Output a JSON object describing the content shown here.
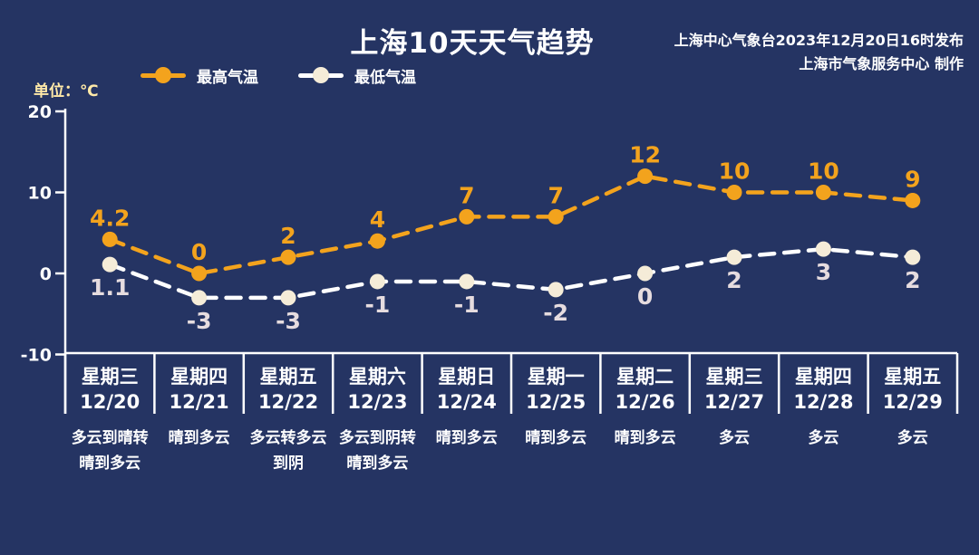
{
  "header": {
    "title": "上海10天天气趋势",
    "publisher_line1": "上海中心气象台2023年12月20日16时发布",
    "publisher_line2": "上海市气象服务中心 制作"
  },
  "legend": {
    "high_label": "最高气温",
    "low_label": "最低气温"
  },
  "unit_label": "单位：℃",
  "colors": {
    "background": "#253463",
    "high_accent": "#f3a31d",
    "low_marker": "#f5ecd8",
    "low_line": "#ffffff",
    "low_value_text": "#e6dcdf",
    "axis": "#ffffff",
    "unit_text": "#ffe9a8"
  },
  "chart_data": {
    "type": "line",
    "title": "上海10天天气趋势",
    "ylabel": "单位：℃",
    "yticks": [
      20,
      10,
      0,
      -10
    ],
    "ylim": [
      -10,
      20
    ],
    "grid": false,
    "legend_position": "top-left",
    "series": [
      {
        "name": "最高气温",
        "values": [
          4.2,
          0,
          2,
          4,
          7,
          7,
          12,
          10,
          10,
          9
        ],
        "line_color": "#f3a31d",
        "marker_color": "#f3a31d",
        "value_color": "#f3a31d",
        "label_position": "above"
      },
      {
        "name": "最低气温",
        "values": [
          1.1,
          -3,
          -3,
          -1,
          -1,
          -2,
          0,
          2,
          3,
          2
        ],
        "line_color": "#ffffff",
        "marker_color": "#f5ecd8",
        "value_color": "#e6dcdf",
        "label_position": "below"
      }
    ],
    "categories": [
      {
        "weekday": "星期三",
        "date": "12/20",
        "weather": [
          "多云到晴转",
          "晴到多云"
        ]
      },
      {
        "weekday": "星期四",
        "date": "12/21",
        "weather": [
          "晴到多云"
        ]
      },
      {
        "weekday": "星期五",
        "date": "12/22",
        "weather": [
          "多云转多云",
          "到阴"
        ]
      },
      {
        "weekday": "星期六",
        "date": "12/23",
        "weather": [
          "多云到阴转",
          "晴到多云"
        ]
      },
      {
        "weekday": "星期日",
        "date": "12/24",
        "weather": [
          "晴到多云"
        ]
      },
      {
        "weekday": "星期一",
        "date": "12/25",
        "weather": [
          "晴到多云"
        ]
      },
      {
        "weekday": "星期二",
        "date": "12/26",
        "weather": [
          "晴到多云"
        ]
      },
      {
        "weekday": "星期三",
        "date": "12/27",
        "weather": [
          "多云"
        ]
      },
      {
        "weekday": "星期四",
        "date": "12/28",
        "weather": [
          "多云"
        ]
      },
      {
        "weekday": "星期五",
        "date": "12/29",
        "weather": [
          "多云"
        ]
      }
    ]
  }
}
